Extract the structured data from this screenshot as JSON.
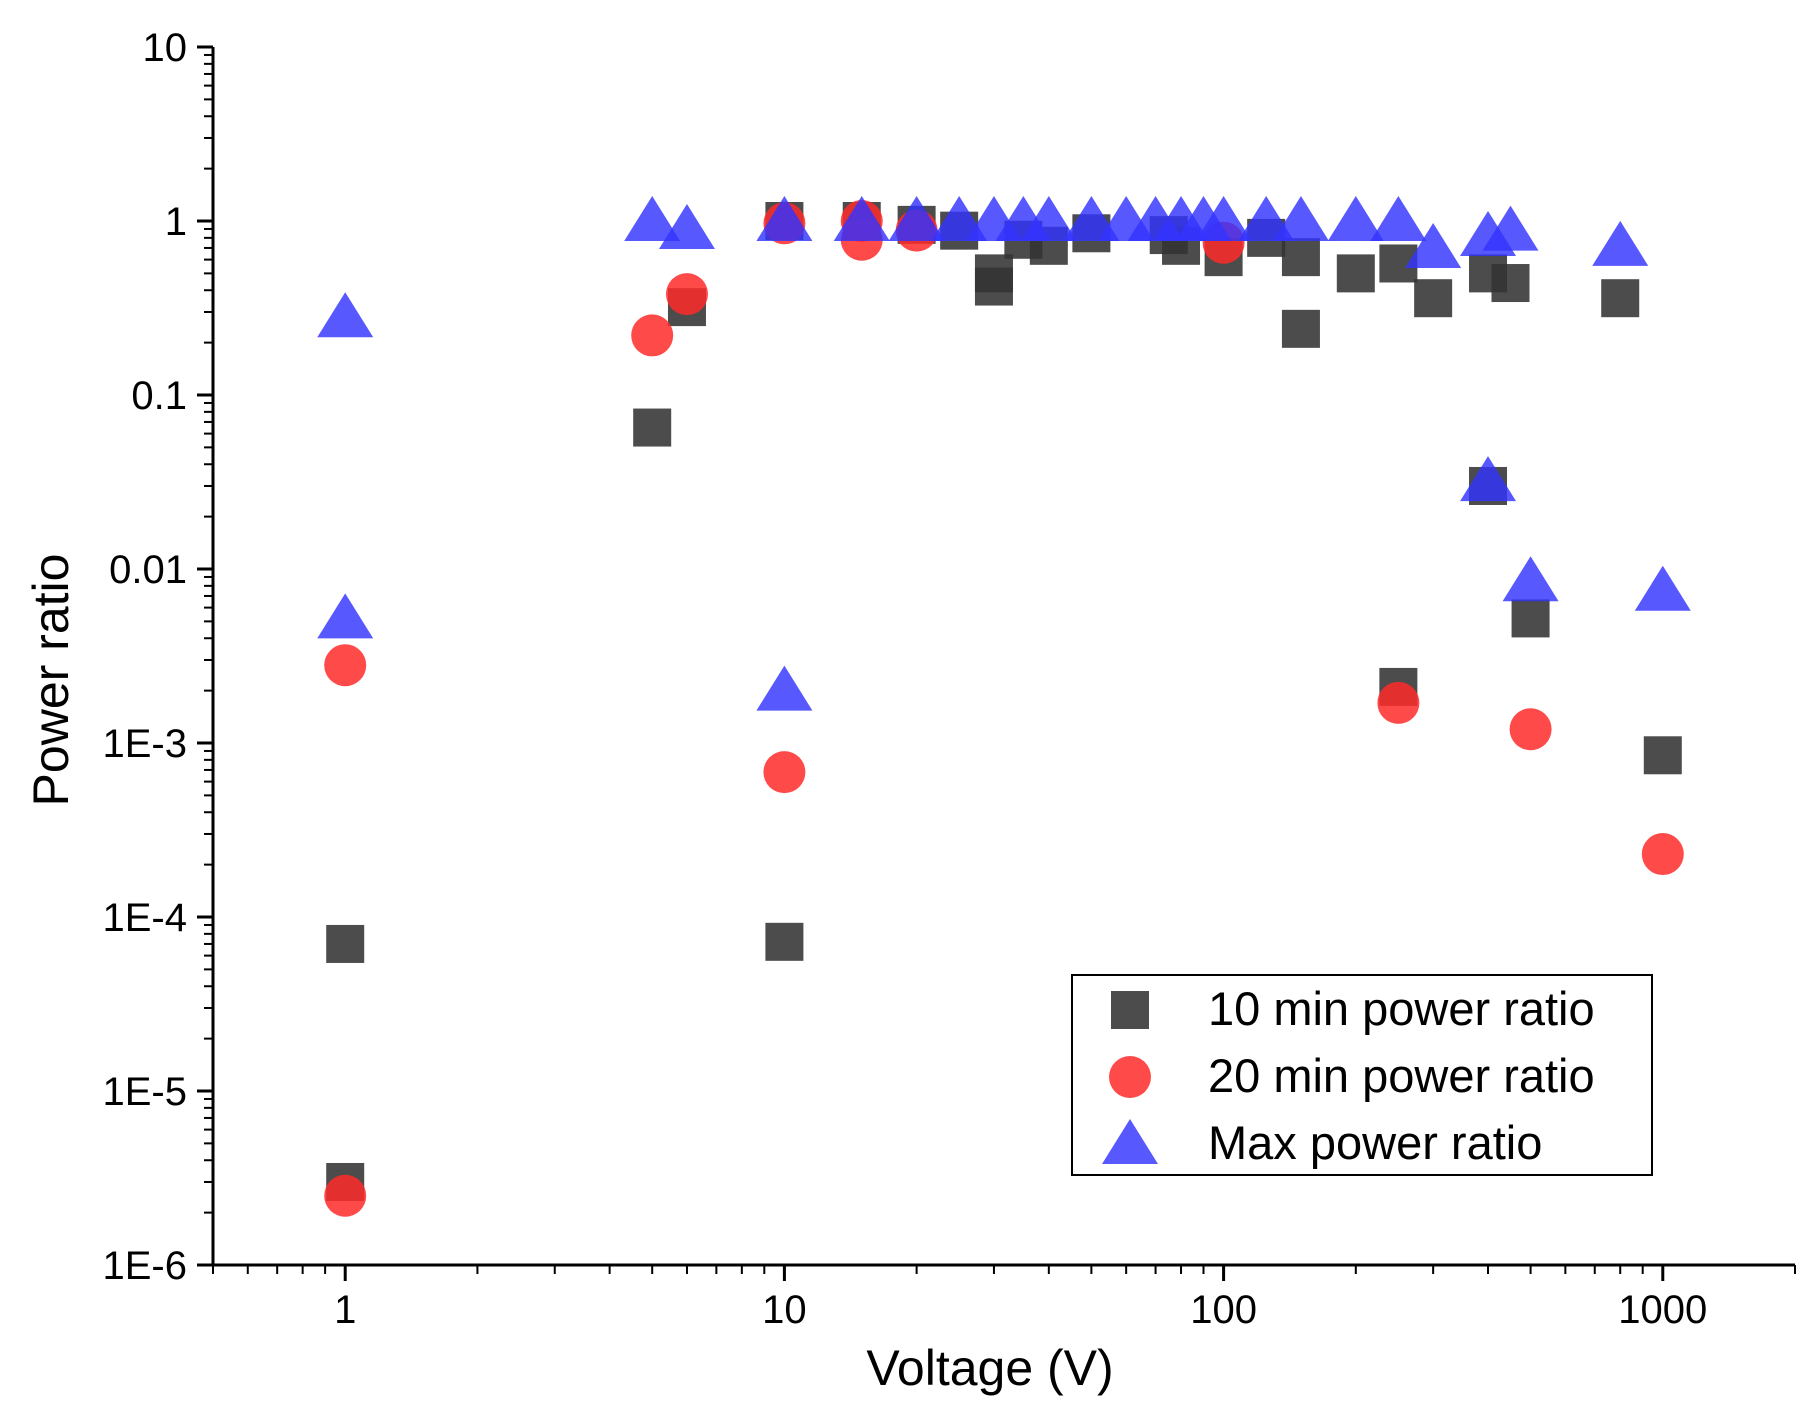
{
  "chart_data": {
    "type": "scatter",
    "title": "",
    "xlabel": "Voltage (V)",
    "ylabel": "Power ratio",
    "xscale": "log",
    "yscale": "log",
    "xlim": [
      0.5,
      2000
    ],
    "ylim": [
      1e-06,
      10
    ],
    "x_tick_labels": [
      "1",
      "10",
      "100",
      "1000"
    ],
    "y_tick_labels": [
      "1E-6",
      "1E-5",
      "1E-4",
      "1E-3",
      "0.01",
      "0.1",
      "1",
      "10"
    ],
    "legend_position": "bottom-right",
    "series": [
      {
        "name": "10 min power ratio",
        "marker": "square",
        "color": "#333333",
        "points": [
          [
            1,
            7e-05
          ],
          [
            1,
            3e-06
          ],
          [
            5,
            0.065
          ],
          [
            6,
            0.32
          ],
          [
            10,
            1.0
          ],
          [
            10,
            7.2e-05
          ],
          [
            15,
            1.0
          ],
          [
            20,
            0.95
          ],
          [
            25,
            0.88
          ],
          [
            30,
            0.42
          ],
          [
            30,
            0.5
          ],
          [
            35,
            0.78
          ],
          [
            40,
            0.72
          ],
          [
            50,
            0.85
          ],
          [
            75,
            0.83
          ],
          [
            80,
            0.72
          ],
          [
            100,
            0.62
          ],
          [
            125,
            0.8
          ],
          [
            150,
            0.62
          ],
          [
            150,
            0.24
          ],
          [
            200,
            0.5
          ],
          [
            250,
            0.57
          ],
          [
            250,
            0.0021
          ],
          [
            300,
            0.36
          ],
          [
            400,
            0.5
          ],
          [
            400,
            0.03
          ],
          [
            450,
            0.44
          ],
          [
            500,
            0.0052
          ],
          [
            800,
            0.36
          ],
          [
            1000,
            0.00085
          ]
        ]
      },
      {
        "name": "20 min power ratio",
        "marker": "circle",
        "color": "#ff2a2a",
        "points": [
          [
            1,
            0.0028
          ],
          [
            1,
            2.5e-06
          ],
          [
            5,
            0.22
          ],
          [
            6,
            0.38
          ],
          [
            10,
            0.97
          ],
          [
            10,
            0.00068
          ],
          [
            15,
            1.0
          ],
          [
            15,
            0.78
          ],
          [
            20,
            0.88
          ],
          [
            100,
            0.75
          ],
          [
            250,
            0.0017
          ],
          [
            500,
            0.0012
          ],
          [
            1000,
            0.00023
          ]
        ]
      },
      {
        "name": "Max power ratio",
        "marker": "triangle",
        "color": "#3333ff",
        "points": [
          [
            1,
            0.28
          ],
          [
            1,
            0.0052
          ],
          [
            5,
            1.0
          ],
          [
            6,
            0.9
          ],
          [
            10,
            1.0
          ],
          [
            10,
            0.002
          ],
          [
            15,
            1.0
          ],
          [
            20,
            1.0
          ],
          [
            25,
            1.0
          ],
          [
            30,
            1.0
          ],
          [
            35,
            1.0
          ],
          [
            40,
            1.0
          ],
          [
            50,
            1.0
          ],
          [
            60,
            1.0
          ],
          [
            70,
            1.0
          ],
          [
            80,
            1.0
          ],
          [
            90,
            1.0
          ],
          [
            100,
            1.0
          ],
          [
            125,
            1.0
          ],
          [
            150,
            1.0
          ],
          [
            200,
            1.0
          ],
          [
            250,
            1.0
          ],
          [
            300,
            0.7
          ],
          [
            400,
            0.82
          ],
          [
            400,
            0.032
          ],
          [
            450,
            0.88
          ],
          [
            500,
            0.0085
          ],
          [
            800,
            0.72
          ],
          [
            1000,
            0.0075
          ]
        ]
      }
    ]
  }
}
